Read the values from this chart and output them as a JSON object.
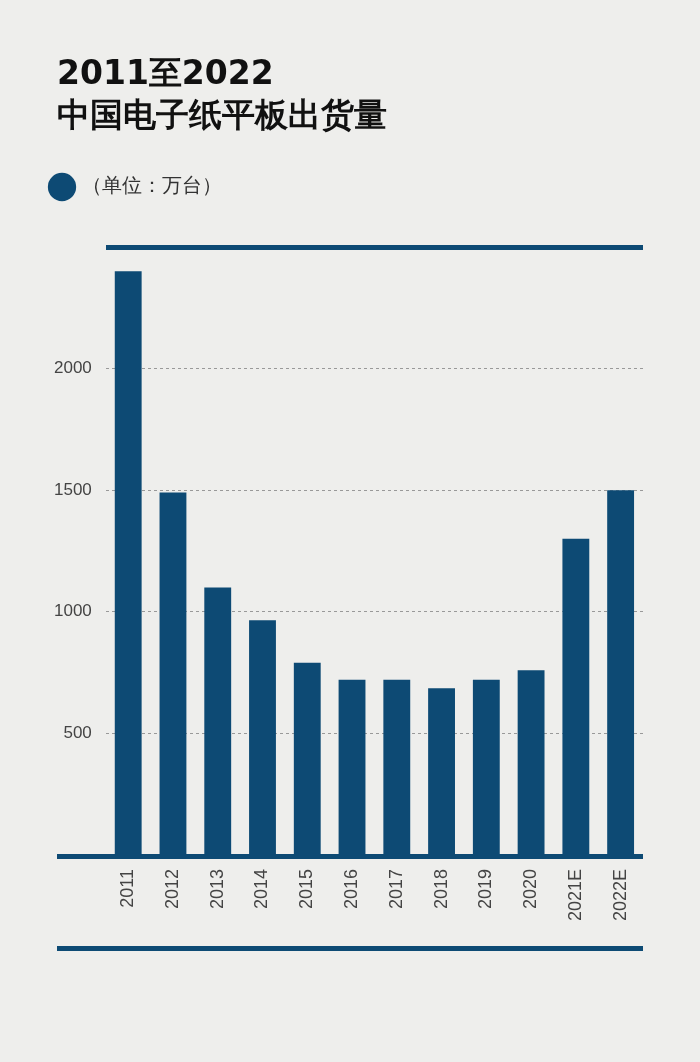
{
  "chart_data": {
    "type": "bar",
    "title": "2011至2022\n中国电子纸平板出货量",
    "categories": [
      "2011",
      "2012",
      "2013",
      "2014",
      "2015",
      "2016",
      "2017",
      "2018",
      "2019",
      "2020",
      "2021E",
      "2022E"
    ],
    "series": [
      {
        "name": "（单位：万台）",
        "color": "#0d4a74",
        "values": [
          2400,
          1490,
          1100,
          965,
          790,
          720,
          720,
          685,
          720,
          760,
          1300,
          1500
        ]
      }
    ],
    "ylim": [
      0,
      2500
    ],
    "yticks": [
      500,
      1000,
      1500,
      2000,
      {
        "value": 2500,
        "label": null
      }
    ],
    "grid": "y",
    "legend": "top left"
  }
}
